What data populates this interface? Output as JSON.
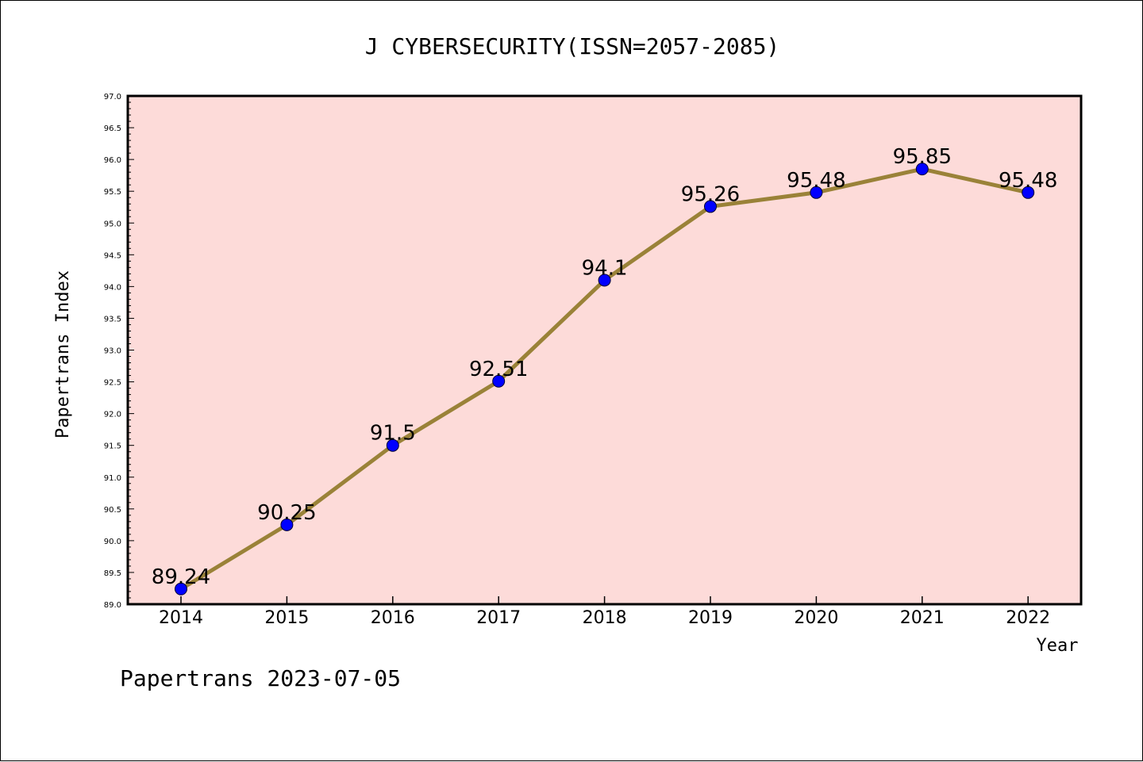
{
  "chart_data": {
    "type": "line",
    "title": "J CYBERSECURITY(ISSN=2057-2085)",
    "xlabel": "Year",
    "ylabel": "Papertrans Index",
    "categories": [
      "2014",
      "2015",
      "2016",
      "2017",
      "2018",
      "2019",
      "2020",
      "2021",
      "2022"
    ],
    "series": [
      {
        "values": [
          89.24,
          90.25,
          91.5,
          92.51,
          94.1,
          95.26,
          95.48,
          95.85,
          95.48
        ],
        "labels": [
          "89.24",
          "90.25",
          "91.5",
          "92.51",
          "94.1",
          "95.26",
          "95.48",
          "95.85",
          "95.48"
        ]
      }
    ],
    "ylim": [
      89.0,
      97.0
    ],
    "yticks": [
      "89.0",
      "89.5",
      "90.0",
      "90.5",
      "91.0",
      "91.5",
      "92.0",
      "92.5",
      "93.0",
      "93.5",
      "94.0",
      "94.5",
      "95.0",
      "95.5",
      "96.0",
      "96.5",
      "97.0"
    ],
    "grid": false,
    "colors": {
      "plot_background": "#fddbd9",
      "line": "#9a8238",
      "marker": "#0000ff"
    }
  },
  "footer": "Papertrans 2023-07-05"
}
